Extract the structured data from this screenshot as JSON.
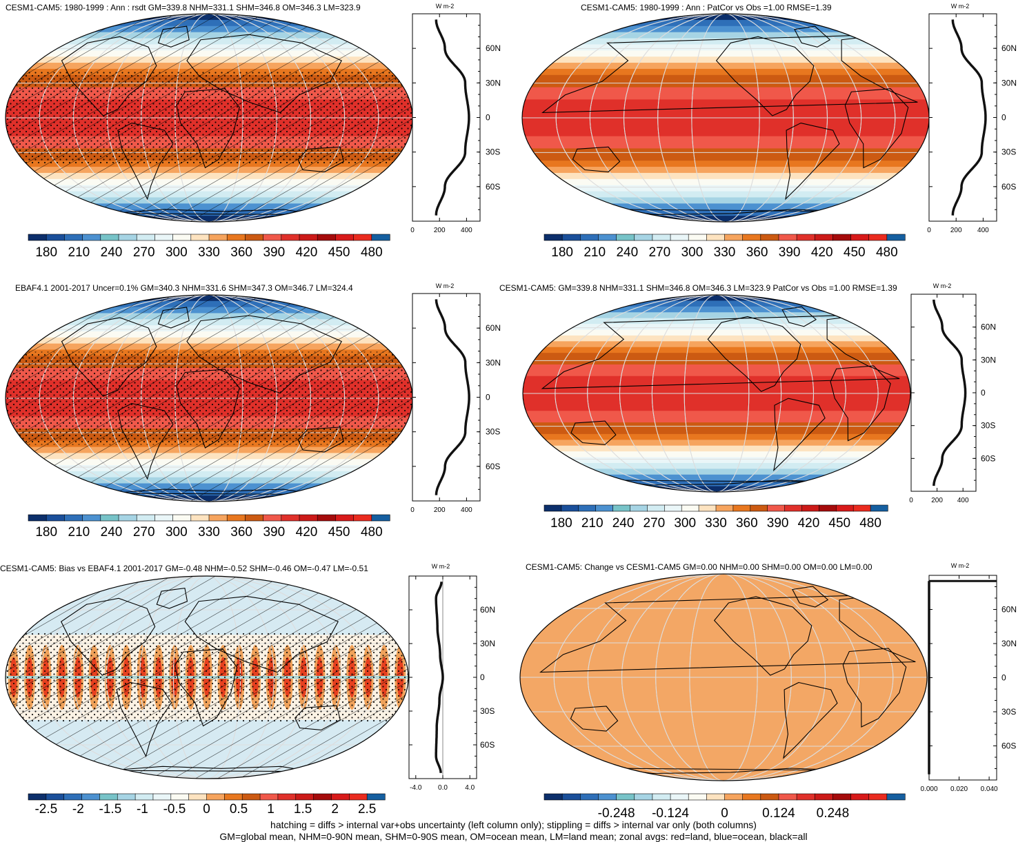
{
  "colors": {
    "main_scale": [
      "#0c2f6b",
      "#1a4f9a",
      "#2e6fb8",
      "#4c91d0",
      "#77c3c8",
      "#a6d4e4",
      "#d2ecf2",
      "#eaf6f8",
      "#fbfbf3",
      "#fde3c0",
      "#f6a45e",
      "#e8771f",
      "#cc5a12",
      "#f0584a",
      "#e0302a",
      "#cc1a18",
      "#a50b0b",
      "#d81a1a",
      "#ea2b1f",
      "#155fa0"
    ],
    "diff_scale": [
      "#0c2f6b",
      "#1a4f9a",
      "#2e6fb8",
      "#4c91d0",
      "#77c3c8",
      "#a6d4e4",
      "#d2ecf2",
      "#eaf6f8",
      "#fbfbf3",
      "#fde3c0",
      "#f6a45e",
      "#e8771f",
      "#cc5a12",
      "#f0584a",
      "#e0302a",
      "#cc1a18",
      "#a50b0b",
      "#d81a1a",
      "#ea2b1f",
      "#155fa0"
    ],
    "change_fill": "#f3a765",
    "zonal_line": "#111111"
  },
  "panels": [
    {
      "title": "CESM1-CAM5: 1980-1999 : Ann : rsdt GM=339.8 NHM=331.1 SHM=346.8 OM=346.3 LM=323.9",
      "units": "W m-2",
      "cb_labels": [
        "180",
        "210",
        "240",
        "270",
        "300",
        "330",
        "360",
        "390",
        "420",
        "450",
        "480"
      ],
      "zonal_xticks": [
        "0",
        "200",
        "400"
      ],
      "lat_labels": [
        "60N",
        "30N",
        "0",
        "30S",
        "60S"
      ]
    },
    {
      "title": "CESM1-CAM5: 1980-1999 : Ann : PatCor vs Obs =1.00 RMSE=1.39",
      "units": "W m-2",
      "cb_labels": [
        "180",
        "210",
        "240",
        "270",
        "300",
        "330",
        "360",
        "390",
        "420",
        "450",
        "480"
      ],
      "zonal_xticks": [
        "0",
        "200",
        "400"
      ],
      "lat_labels": [
        "60N",
        "30N",
        "0",
        "30S",
        "60S"
      ]
    },
    {
      "title": "EBAF4.1 2001-2017 Uncer=0.1% GM=340.3 NHM=331.6 SHM=347.3 OM=346.7 LM=324.4",
      "units": "W m-2",
      "cb_labels": [
        "180",
        "210",
        "240",
        "270",
        "300",
        "330",
        "360",
        "390",
        "420",
        "450",
        "480"
      ],
      "zonal_xticks": [
        "0",
        "200",
        "400"
      ],
      "lat_labels": [
        "60N",
        "30N",
        "0",
        "30S",
        "60S"
      ]
    },
    {
      "title": "CESM1-CAM5: GM=339.8 NHM=331.1 SHM=346.8 OM=346.3 LM=323.9 PatCor vs Obs =1.00 RMSE=1.39",
      "units": "W m-2",
      "cb_labels": [
        "180",
        "210",
        "240",
        "270",
        "300",
        "330",
        "360",
        "390",
        "420",
        "450",
        "480"
      ],
      "zonal_xticks": [
        "0",
        "200",
        "400"
      ],
      "lat_labels": [
        "60N",
        "30N",
        "0",
        "30S",
        "60S"
      ]
    },
    {
      "title": "CESM1-CAM5: Bias vs EBAF4.1 2001-2017 GM=-0.48 NHM=-0.52 SHM=-0.46 OM=-0.47 LM=-0.51",
      "units": "W m-2",
      "cb_labels": [
        "-2.5",
        "-2",
        "-1.5",
        "-1",
        "-0.5",
        "0",
        "0.5",
        "1",
        "1.5",
        "2",
        "2.5"
      ],
      "zonal_xticks": [
        "-4.0",
        "0.0",
        "4.0"
      ],
      "lat_labels": [
        "60N",
        "30N",
        "0",
        "30S",
        "60S"
      ]
    },
    {
      "title": "CESM1-CAM5: Change vs CESM1-CAM5 GM=0.00 NHM=0.00 SHM=0.00 OM=0.00 LM=0.00",
      "units": "W m-2",
      "cb_labels": [
        "-0.248",
        "-0.124",
        "0",
        "0.124",
        "0.248"
      ],
      "zonal_xticks": [
        "0.000",
        "0.020",
        "0.040"
      ],
      "lat_labels": [
        "60N",
        "30N",
        "0",
        "30S",
        "60S"
      ]
    }
  ],
  "footer": {
    "line1": "hatching = diffs > internal var+obs uncertainty (left column only); stippling = diffs > internal var only (both columns)",
    "line2": "GM=global mean, NHM=0-90N mean, SHM=0-90S mean, OM=ocean mean, LM=land mean; zonal avgs: red=land, blue=ocean, black=all"
  },
  "chart_data": [
    {
      "type": "heatmap",
      "title": "CESM1-CAM5: 1980-1999 : Ann : rsdt GM=339.8 NHM=331.1 SHM=346.8 OM=346.3 LM=323.9",
      "zonal_mean": {
        "lat": [
          -85,
          -60,
          -30,
          0,
          30,
          60,
          85
        ],
        "values": [
          175,
          240,
          390,
          418,
          390,
          240,
          175
        ]
      },
      "xlim": [
        0,
        500
      ],
      "ylim": [
        -90,
        90
      ],
      "colorbar": [
        180,
        480
      ]
    },
    {
      "type": "heatmap",
      "title": "CESM1-CAM5: 1980-1999 : Ann : PatCor vs Obs =1.00 RMSE=1.39",
      "zonal_mean": {
        "lat": [
          -85,
          -60,
          -30,
          0,
          30,
          60,
          85
        ],
        "values": [
          175,
          240,
          390,
          418,
          390,
          240,
          175
        ]
      },
      "xlim": [
        0,
        500
      ],
      "ylim": [
        -90,
        90
      ],
      "colorbar": [
        180,
        480
      ]
    },
    {
      "type": "heatmap",
      "title": "EBAF4.1 2001-2017 Uncer=0.1% GM=340.3 NHM=331.6 SHM=347.3 OM=346.7 LM=324.4",
      "zonal_mean": {
        "lat": [
          -85,
          -60,
          -30,
          0,
          30,
          60,
          85
        ],
        "values": [
          176,
          241,
          391,
          419,
          391,
          241,
          176
        ]
      },
      "xlim": [
        0,
        500
      ],
      "ylim": [
        -90,
        90
      ],
      "colorbar": [
        180,
        480
      ]
    },
    {
      "type": "heatmap",
      "title": "CESM1-CAM5: GM=339.8 NHM=331.1 SHM=346.8 OM=346.3 LM=323.9 PatCor vs Obs =1.00 RMSE=1.39",
      "zonal_mean": {
        "lat": [
          -85,
          -60,
          -30,
          0,
          30,
          60,
          85
        ],
        "values": [
          175,
          240,
          390,
          418,
          390,
          240,
          175
        ]
      },
      "xlim": [
        0,
        500
      ],
      "ylim": [
        -90,
        90
      ],
      "colorbar": [
        180,
        480
      ]
    },
    {
      "type": "heatmap",
      "title": "CESM1-CAM5: Bias vs EBAF4.1 2001-2017 GM=-0.48 NHM=-0.52 SHM=-0.46 OM=-0.47 LM=-0.51",
      "zonal_mean": {
        "lat": [
          -85,
          -70,
          -45,
          -20,
          0,
          20,
          45,
          70,
          85
        ],
        "values": [
          -0.3,
          -1.0,
          -0.9,
          -0.5,
          0.0,
          -0.4,
          -0.8,
          -1.0,
          -0.2
        ]
      },
      "xlim": [
        -5,
        5
      ],
      "ylim": [
        -90,
        90
      ],
      "colorbar": [
        -2.5,
        2.5
      ]
    },
    {
      "type": "heatmap",
      "title": "CESM1-CAM5: Change vs CESM1-CAM5 GM=0.00 NHM=0.00 SHM=0.00 OM=0.00 LM=0.00",
      "zonal_mean": {
        "lat": [
          -85,
          0,
          85
        ],
        "values": [
          0,
          0,
          0
        ]
      },
      "xlim": [
        0,
        0.045
      ],
      "ylim": [
        -90,
        90
      ],
      "colorbar": [
        -0.248,
        0.248
      ]
    }
  ]
}
